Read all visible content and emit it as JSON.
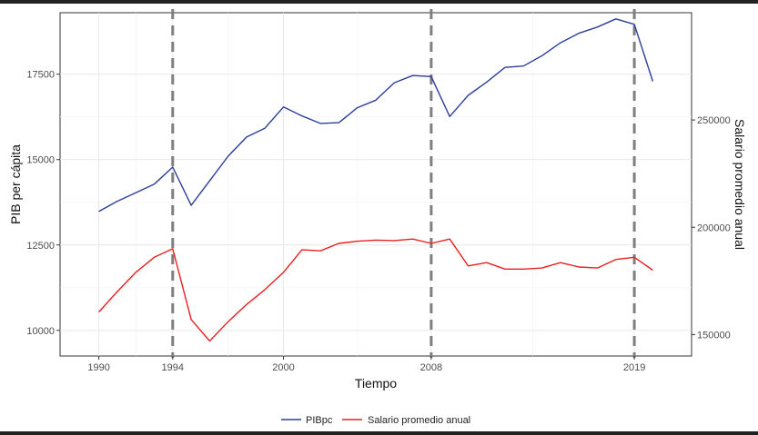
{
  "chart_data": {
    "type": "line",
    "title": "",
    "xlabel": "Tiempo",
    "ylabel": "PIB per cápita",
    "y2label": "Salario promedio anual",
    "xlim": [
      1987.9,
      2022.1
    ],
    "ylim": [
      9250,
      19300
    ],
    "y2lim": [
      140000,
      300000
    ],
    "x_ticks": [
      1990,
      1994,
      2000,
      2008,
      2019
    ],
    "y_ticks": [
      10000,
      12500,
      15000,
      17500
    ],
    "y_tick_labels": [
      "10000",
      "12500",
      "15000",
      "17500"
    ],
    "y2_ticks": [
      150000,
      200000,
      250000
    ],
    "y2_tick_labels": [
      "150000",
      "200000",
      "250000"
    ],
    "vlines": [
      1994,
      2008,
      2019
    ],
    "grid": true,
    "legend_position": "bottom",
    "series": [
      {
        "name": "PIBpc",
        "axis": "left",
        "color": "#2b3f99",
        "points": [
          [
            1990,
            13480
          ],
          [
            1991,
            13780
          ],
          [
            1992,
            14030
          ],
          [
            1993,
            14280
          ],
          [
            1994,
            14780
          ],
          [
            1995,
            13660
          ],
          [
            1996,
            14380
          ],
          [
            1997,
            15100
          ],
          [
            1998,
            15660
          ],
          [
            1999,
            15920
          ],
          [
            2000,
            16540
          ],
          [
            2001,
            16280
          ],
          [
            2002,
            16060
          ],
          [
            2003,
            16080
          ],
          [
            2004,
            16520
          ],
          [
            2005,
            16740
          ],
          [
            2006,
            17250
          ],
          [
            2007,
            17460
          ],
          [
            2008,
            17430
          ],
          [
            2009,
            16260
          ],
          [
            2010,
            16880
          ],
          [
            2011,
            17270
          ],
          [
            2012,
            17700
          ],
          [
            2013,
            17740
          ],
          [
            2014,
            18040
          ],
          [
            2015,
            18420
          ],
          [
            2016,
            18700
          ],
          [
            2017,
            18880
          ],
          [
            2018,
            19120
          ],
          [
            2019,
            18960
          ],
          [
            2020,
            17290
          ]
        ]
      },
      {
        "name": "Salario promedio anual",
        "axis": "right",
        "color": "#e8201f",
        "points": [
          [
            1990,
            160500
          ],
          [
            1991,
            170000
          ],
          [
            1992,
            179000
          ],
          [
            1993,
            186000
          ],
          [
            1994,
            190000
          ],
          [
            1995,
            157000
          ],
          [
            1996,
            147000
          ],
          [
            1997,
            156000
          ],
          [
            1998,
            164000
          ],
          [
            1999,
            171000
          ],
          [
            2000,
            179000
          ],
          [
            2001,
            189500
          ],
          [
            2002,
            189000
          ],
          [
            2003,
            192500
          ],
          [
            2004,
            193500
          ],
          [
            2005,
            194000
          ],
          [
            2006,
            193800
          ],
          [
            2007,
            194500
          ],
          [
            2008,
            192500
          ],
          [
            2009,
            194500
          ],
          [
            2010,
            182000
          ],
          [
            2011,
            183500
          ],
          [
            2012,
            180500
          ],
          [
            2013,
            180500
          ],
          [
            2014,
            181000
          ],
          [
            2015,
            183500
          ],
          [
            2016,
            181500
          ],
          [
            2017,
            181000
          ],
          [
            2018,
            185000
          ],
          [
            2019,
            186000
          ],
          [
            2020,
            180000
          ]
        ]
      }
    ]
  }
}
